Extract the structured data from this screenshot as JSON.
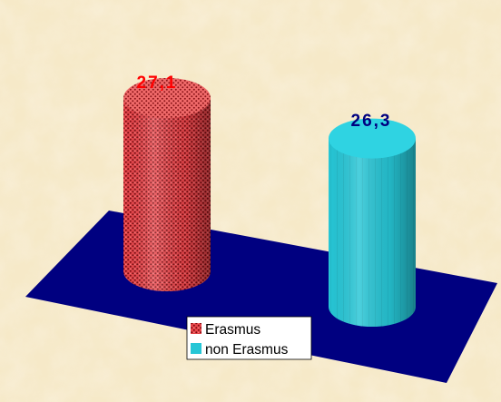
{
  "chart_data": {
    "type": "bar",
    "categories": [
      "Erasmus",
      "non Erasmus"
    ],
    "series": [
      {
        "name": "Erasmus",
        "values": [
          27.1,
          null
        ]
      },
      {
        "name": "non Erasmus",
        "values": [
          null,
          26.3
        ]
      }
    ],
    "data_labels": [
      "27,1",
      "26,3"
    ],
    "title": "",
    "xlabel": "",
    "ylabel": "",
    "bar_shape": "cylinder-3d",
    "grid": false,
    "legend": "bottom-center"
  },
  "legend": {
    "items": [
      {
        "label": "Erasmus"
      },
      {
        "label": "non Erasmus"
      }
    ]
  },
  "colors": {
    "background": "#f6e9c8",
    "floor": "#000080",
    "erasmus": "#e0353a",
    "non_erasmus": "#26c6d6",
    "label_erasmus": "#ff0000",
    "label_non_erasmus": "#000080"
  }
}
